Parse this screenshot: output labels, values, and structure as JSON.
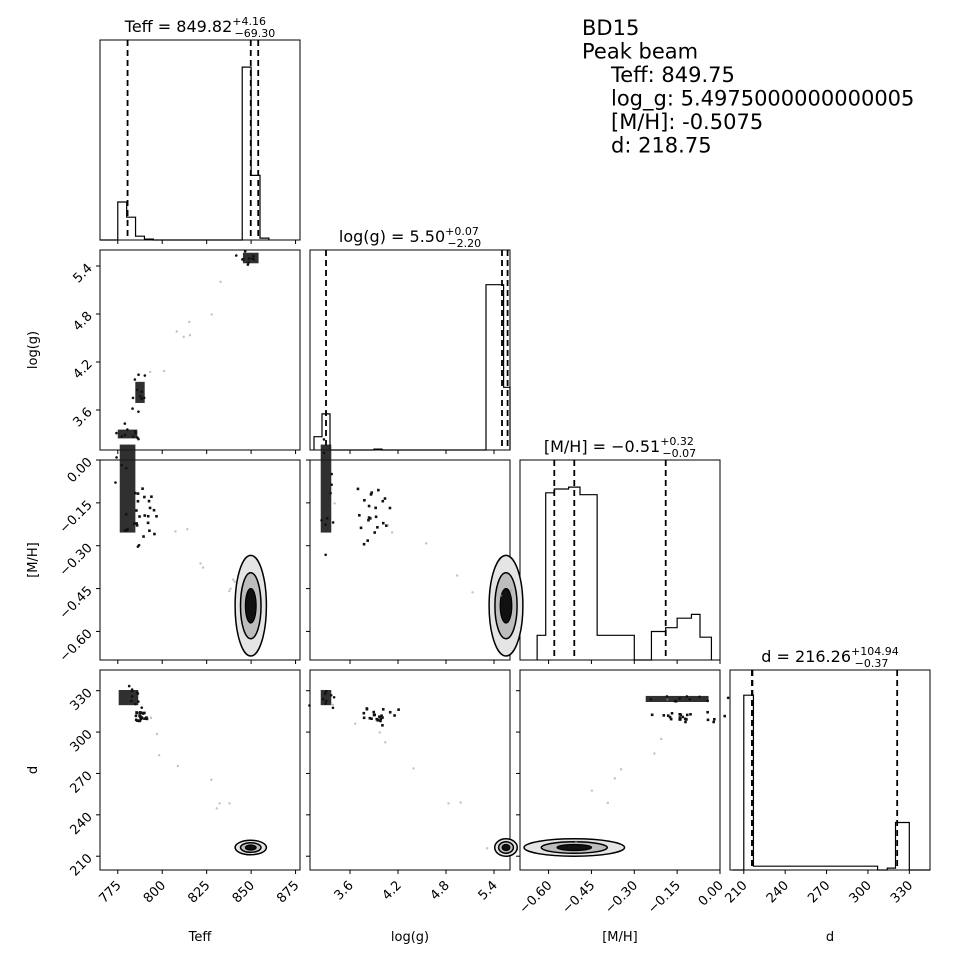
{
  "chart_data": {
    "type": "corner",
    "parameters": [
      "Teff",
      "log(g)",
      "[M/H]",
      "d"
    ],
    "axis_labels": [
      "Teff",
      "log(g)",
      "[M/H]",
      "d"
    ],
    "ranges": [
      [
        765,
        877.5
      ],
      [
        3.1,
        5.6
      ],
      [
        -0.7,
        0.0
      ],
      [
        200,
        345
      ]
    ],
    "ticks": [
      [
        "775",
        "800",
        "825",
        "850",
        "875"
      ],
      [
        "3.6",
        "4.2",
        "4.8",
        "5.4"
      ],
      [
        "−0.60",
        "−0.45",
        "−0.30",
        "−0.15",
        "0.00"
      ],
      [
        "210",
        "240",
        "270",
        "300",
        "330"
      ]
    ],
    "tick_values": [
      [
        775,
        800,
        825,
        850,
        875
      ],
      [
        3.6,
        4.2,
        4.8,
        5.4
      ],
      [
        -0.6,
        -0.45,
        -0.3,
        -0.15,
        0.0
      ],
      [
        210,
        240,
        270,
        300,
        330
      ]
    ],
    "titles": [
      {
        "main": "Teff = 849.82",
        "sup": "+4.16",
        "sub": "−69.30"
      },
      {
        "main": "log(g) = 5.50",
        "sup": "+0.07",
        "sub": "−2.20"
      },
      {
        "main": "[M/H] = −0.51",
        "sup": "+0.32",
        "sub": "−0.07"
      },
      {
        "main": "d = 216.26",
        "sup": "+104.94",
        "sub": "−0.37"
      }
    ],
    "quantile_lines": [
      [
        780.5,
        849.8,
        854.0
      ],
      [
        3.3,
        5.5,
        5.57
      ],
      [
        -0.58,
        -0.51,
        -0.19
      ],
      [
        215.9,
        216.26,
        321.2
      ]
    ],
    "histograms": [
      {
        "edges": [
          765,
          770,
          775,
          780,
          785,
          790,
          795,
          845,
          850,
          855,
          860
        ],
        "counts": [
          0,
          0,
          0.2,
          0.12,
          0.02,
          0.005,
          0,
          0.91,
          0.34,
          0.01
        ]
      },
      {
        "edges": [
          3.15,
          3.25,
          3.35,
          3.45,
          3.9,
          4.0,
          5.3,
          5.52,
          5.6
        ],
        "counts": [
          0.07,
          0.19,
          0,
          0,
          0.005,
          0,
          0.87,
          0.33
        ]
      },
      {
        "edges": [
          -0.64,
          -0.61,
          -0.58,
          -0.53,
          -0.49,
          -0.43,
          -0.3,
          -0.24,
          -0.19,
          -0.15,
          -0.1,
          -0.07,
          -0.03
        ],
        "counts": [
          0.13,
          0.88,
          0.9,
          0.91,
          0.87,
          0.13,
          0,
          0.15,
          0.17,
          0.22,
          0.24,
          0.12
        ]
      },
      {
        "edges": [
          202,
          210,
          217,
          307,
          314,
          320,
          330,
          345
        ],
        "counts": [
          0,
          0.92,
          0.02,
          0,
          0.01,
          0.25,
          0
        ]
      }
    ],
    "clusters": [
      {
        "x": 849.8,
        "y": 5.5,
        "xs": 2.0,
        "ys": 0.03
      },
      {
        "x": 780.5,
        "y": 3.3,
        "xs": 2.5,
        "ys": 0.025
      },
      {
        "x": 787.5,
        "y": 3.82,
        "xs": 1.2,
        "ys": 0.06
      }
    ],
    "cluster_sets": [
      {
        "xi": 0,
        "yi": 1,
        "points": [
          [
            849.8,
            5.5,
            2.0,
            0.03,
            "fill"
          ],
          [
            780.5,
            3.3,
            2.5,
            0.025,
            "fill"
          ],
          [
            787.5,
            3.82,
            1.2,
            0.06,
            "fill"
          ]
        ]
      },
      {
        "xi": 0,
        "yi": 2,
        "points": [
          [
            780.5,
            -0.1,
            2.0,
            0.07,
            "fill"
          ],
          [
            789,
            -0.18,
            2.5,
            0.03,
            "scatter"
          ],
          [
            849.8,
            -0.51,
            2.5,
            0.05,
            "contour"
          ]
        ]
      },
      {
        "xi": 1,
        "yi": 2,
        "points": [
          [
            3.3,
            -0.1,
            0.03,
            0.07,
            "fill"
          ],
          [
            3.9,
            -0.18,
            0.06,
            0.03,
            "scatter"
          ],
          [
            5.55,
            -0.51,
            0.06,
            0.05,
            "contour"
          ]
        ]
      },
      {
        "xi": 0,
        "yi": 3,
        "points": [
          [
            781,
            325,
            2.5,
            2.5,
            "fill"
          ],
          [
            788,
            311,
            1.5,
            1.5,
            "scatter"
          ],
          [
            849.8,
            216.3,
            2.5,
            1.5,
            "contour"
          ]
        ]
      },
      {
        "xi": 1,
        "yi": 3,
        "points": [
          [
            3.3,
            325,
            0.03,
            2.5,
            "fill"
          ],
          [
            3.92,
            311,
            0.06,
            1.5,
            "scatter"
          ],
          [
            5.55,
            216.3,
            0.04,
            1.8,
            "contour"
          ]
        ]
      },
      {
        "xi": 2,
        "yi": 3,
        "points": [
          [
            -0.15,
            324,
            0.05,
            1.0,
            "fill"
          ],
          [
            -0.13,
            311,
            0.03,
            1.2,
            "scatter"
          ],
          [
            -0.51,
            216.3,
            0.05,
            1.8,
            "contour"
          ]
        ]
      }
    ],
    "annotation": [
      "BD15",
      "Peak beam",
      "Teff: 849.75",
      "log_g: 5.4975000000000005",
      "[M/H]: -0.5075",
      "d: 218.75"
    ]
  }
}
